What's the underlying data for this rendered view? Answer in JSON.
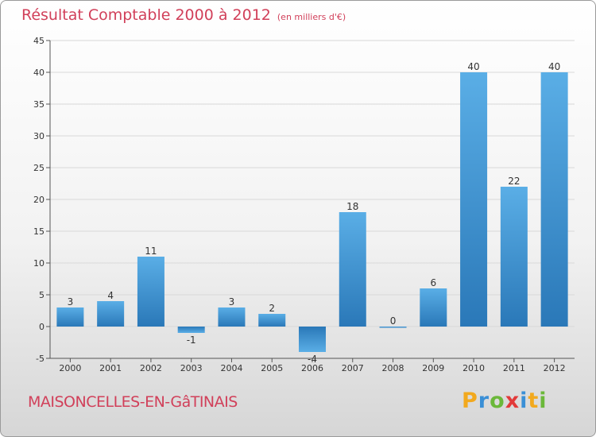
{
  "chart_data": {
    "type": "bar",
    "title": "Résultat Comptable 2000 à 2012",
    "subtitle": "(en milliers d'€)",
    "categories": [
      "2000",
      "2001",
      "2002",
      "2003",
      "2004",
      "2005",
      "2006",
      "2007",
      "2008",
      "2009",
      "2010",
      "2011",
      "2012"
    ],
    "values": [
      3,
      4,
      11,
      -1,
      3,
      2,
      -4,
      18,
      0,
      6,
      40,
      22,
      40
    ],
    "value_labels": [
      "3",
      "4",
      "11",
      "-1",
      "3",
      "2",
      "-4",
      "18",
      "0",
      "6",
      "40",
      "22",
      "40"
    ],
    "ylim": [
      -5,
      45
    ],
    "yticks": [
      -5,
      0,
      5,
      10,
      15,
      20,
      25,
      30,
      35,
      40,
      45
    ],
    "ytick_labels": [
      "-5",
      "0",
      "5",
      "10",
      "15",
      "20",
      "25",
      "30",
      "35",
      "40",
      "45"
    ],
    "grid": true,
    "xlabel": "",
    "ylabel": "",
    "bar_color_top": "#5aaee6",
    "bar_color_bottom": "#2a78b8"
  },
  "commune": "MAISONCELLES-EN-GâTINAIS",
  "brand": {
    "letters": [
      "P",
      "r",
      "o",
      "x",
      "i",
      "t",
      "i"
    ],
    "colors": [
      "#f2a91e",
      "#3a8fd6",
      "#6bb83a",
      "#e23a3a",
      "#3a8fd6",
      "#f2a91e",
      "#6bb83a"
    ]
  },
  "colors": {
    "accent": "#d1405a",
    "axis": "#555555",
    "grid": "#d8d8d8"
  }
}
